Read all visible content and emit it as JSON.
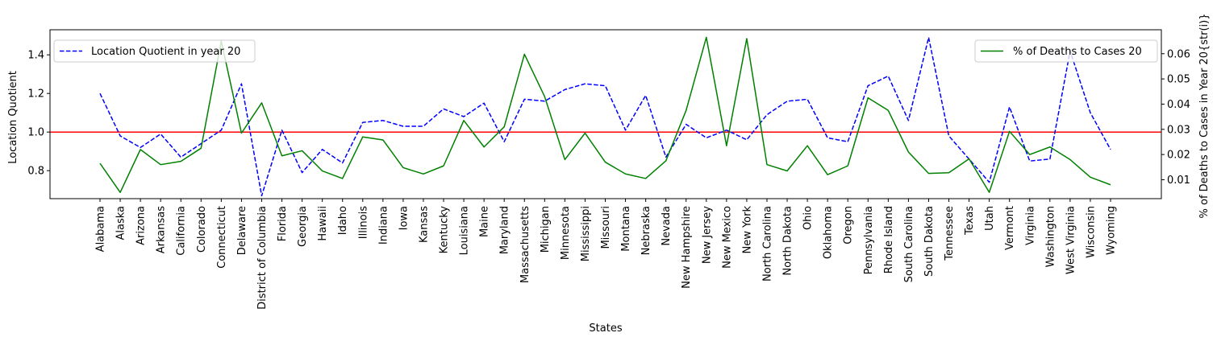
{
  "chart_data": {
    "type": "line",
    "xlabel": "States",
    "ylabel_left": "Location Quotient",
    "ylabel_right": "% of Deaths to Cases in Year 20{str(i)}",
    "categories": [
      "Alabama",
      "Alaska",
      "Arizona",
      "Arkansas",
      "California",
      "Colorado",
      "Connecticut",
      "Delaware",
      "District of Columbia",
      "Florida",
      "Georgia",
      "Hawaii",
      "Idaho",
      "Illinois",
      "Indiana",
      "Iowa",
      "Kansas",
      "Kentucky",
      "Louisiana",
      "Maine",
      "Maryland",
      "Massachusetts",
      "Michigan",
      "Minnesota",
      "Mississippi",
      "Missouri",
      "Montana",
      "Nebraska",
      "Nevada",
      "New Hampshire",
      "New Jersey",
      "New Mexico",
      "New York",
      "North Carolina",
      "North Dakota",
      "Ohio",
      "Oklahoma",
      "Oregon",
      "Pennsylvania",
      "Rhode Island",
      "South Carolina",
      "South Dakota",
      "Tennessee",
      "Texas",
      "Utah",
      "Vermont",
      "Virginia",
      "Washington",
      "West Virginia",
      "Wisconsin",
      "Wyoming"
    ],
    "ylim_left": [
      0.655,
      1.53
    ],
    "ylim_right": [
      0.0025,
      0.0695
    ],
    "yticks_left": [
      "0.8",
      "1.0",
      "1.2",
      "1.4"
    ],
    "yticks_right": [
      "0.01",
      "0.02",
      "0.03",
      "0.04",
      "0.05",
      "0.06"
    ],
    "reference_line": {
      "axis": "left",
      "y": 1.0,
      "color": "#ff0000"
    },
    "series": [
      {
        "name": "Location Quotient in year 20",
        "axis": "left",
        "style": "dashed",
        "color": "#0000ff",
        "legend_position": "upper-left",
        "values": [
          1.2,
          0.98,
          0.92,
          0.99,
          0.87,
          0.94,
          1.01,
          1.25,
          0.67,
          1.01,
          0.79,
          0.91,
          0.84,
          1.05,
          1.06,
          1.03,
          1.03,
          1.12,
          1.08,
          1.15,
          0.95,
          1.17,
          1.16,
          1.22,
          1.25,
          1.24,
          1.01,
          1.19,
          0.87,
          1.04,
          0.97,
          1.01,
          0.96,
          1.09,
          1.16,
          1.17,
          0.97,
          0.95,
          1.24,
          1.29,
          1.06,
          1.49,
          0.98,
          0.86,
          0.74,
          1.13,
          0.85,
          0.86,
          1.42,
          1.1,
          0.91
        ]
      },
      {
        "name": "% of Deaths to Cases 20",
        "axis": "right",
        "style": "solid",
        "color": "#008000",
        "legend_position": "upper-right",
        "values": [
          0.0165,
          0.005,
          0.022,
          0.016,
          0.0173,
          0.0225,
          0.065,
          0.0285,
          0.0405,
          0.0195,
          0.0215,
          0.0135,
          0.0105,
          0.027,
          0.0258,
          0.0148,
          0.0123,
          0.0155,
          0.0335,
          0.023,
          0.031,
          0.0598,
          0.043,
          0.018,
          0.0285,
          0.017,
          0.0123,
          0.0105,
          0.0175,
          0.0375,
          0.0665,
          0.0235,
          0.066,
          0.016,
          0.0135,
          0.0235,
          0.012,
          0.0155,
          0.0425,
          0.0375,
          0.021,
          0.0125,
          0.0128,
          0.0183,
          0.005,
          0.0292,
          0.02,
          0.023,
          0.018,
          0.011,
          0.008
        ]
      }
    ]
  }
}
